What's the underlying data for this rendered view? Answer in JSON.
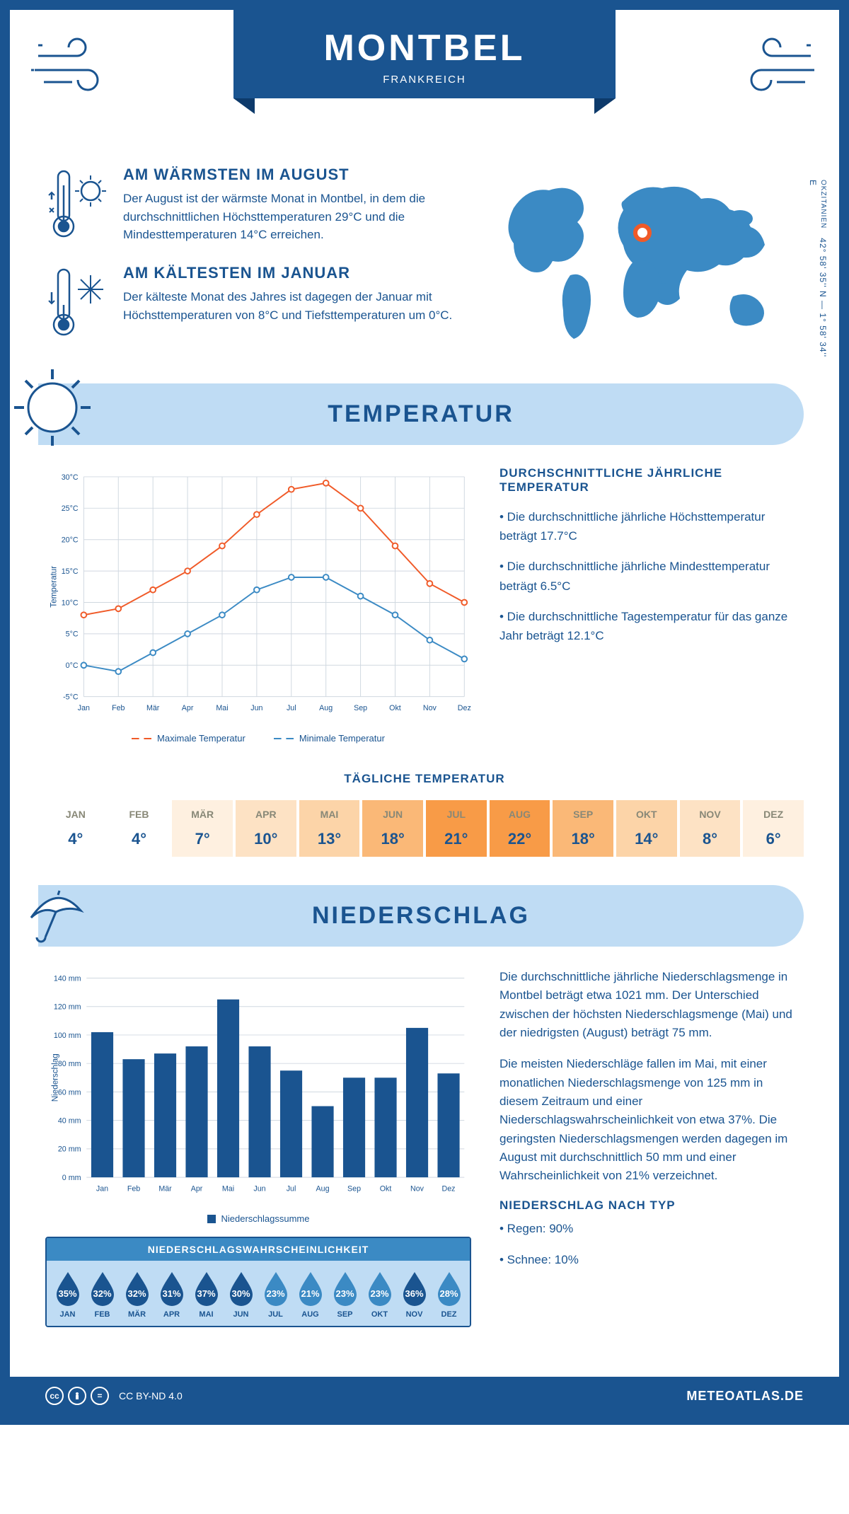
{
  "header": {
    "title": "MONTBEL",
    "subtitle": "FRANKREICH"
  },
  "coords": {
    "lat": "42° 58' 35'' N",
    "sep": "—",
    "lon": "1° 58' 34'' E",
    "region": "OKZITANIEN"
  },
  "intro": {
    "warm": {
      "title": "AM WÄRMSTEN IM AUGUST",
      "text": "Der August ist der wärmste Monat in Montbel, in dem die durchschnittlichen Höchsttemperaturen 29°C und die Mindesttemperaturen 14°C erreichen."
    },
    "cold": {
      "title": "AM KÄLTESTEN IM JANUAR",
      "text": "Der kälteste Monat des Jahres ist dagegen der Januar mit Höchsttemperaturen von 8°C und Tiefsttemperaturen um 0°C."
    }
  },
  "temp_section": {
    "heading": "TEMPERATUR",
    "chart": {
      "type": "line",
      "months": [
        "Jan",
        "Feb",
        "Mär",
        "Apr",
        "Mai",
        "Jun",
        "Jul",
        "Aug",
        "Sep",
        "Okt",
        "Nov",
        "Dez"
      ],
      "max": [
        8,
        9,
        12,
        15,
        19,
        24,
        28,
        29,
        25,
        19,
        13,
        10
      ],
      "min": [
        0,
        -1,
        2,
        5,
        8,
        12,
        14,
        14,
        11,
        8,
        4,
        1
      ],
      "max_color": "#f05a28",
      "min_color": "#3b8ac4",
      "ylim": [
        -5,
        30
      ],
      "ytick_step": 5,
      "ylabel": "Temperatur",
      "grid_color": "#d0d8e0",
      "line_width": 2,
      "marker_size": 4,
      "legend": {
        "max": "Maximale Temperatur",
        "min": "Minimale Temperatur"
      }
    },
    "summary": {
      "title": "DURCHSCHNITTLICHE JÄHRLICHE TEMPERATUR",
      "b1": "• Die durchschnittliche jährliche Höchsttemperatur beträgt 17.7°C",
      "b2": "• Die durchschnittliche jährliche Mindesttemperatur beträgt 6.5°C",
      "b3": "• Die durchschnittliche Tagestemperatur für das ganze Jahr beträgt 12.1°C"
    },
    "daily": {
      "title": "TÄGLICHE TEMPERATUR",
      "months": [
        "JAN",
        "FEB",
        "MÄR",
        "APR",
        "MAI",
        "JUN",
        "JUL",
        "AUG",
        "SEP",
        "OKT",
        "NOV",
        "DEZ"
      ],
      "values": [
        "4°",
        "4°",
        "7°",
        "10°",
        "13°",
        "18°",
        "21°",
        "22°",
        "18°",
        "14°",
        "8°",
        "6°"
      ],
      "colors": [
        "#ffffff",
        "#ffffff",
        "#fef0e0",
        "#fde2c4",
        "#fcd4a8",
        "#fab877",
        "#f89b47",
        "#f89b47",
        "#fab877",
        "#fcd4a8",
        "#fde2c4",
        "#fef0e0"
      ]
    }
  },
  "precip_section": {
    "heading": "NIEDERSCHLAG",
    "chart": {
      "type": "bar",
      "months": [
        "Jan",
        "Feb",
        "Mär",
        "Apr",
        "Mai",
        "Jun",
        "Jul",
        "Aug",
        "Sep",
        "Okt",
        "Nov",
        "Dez"
      ],
      "values": [
        102,
        83,
        87,
        92,
        125,
        92,
        75,
        50,
        70,
        70,
        105,
        73
      ],
      "bar_color": "#1a5490",
      "ylim": [
        0,
        140
      ],
      "ytick_step": 20,
      "ylabel": "Niederschlag",
      "grid_color": "#d0d8e0",
      "legend_label": "Niederschlagssumme"
    },
    "text": {
      "p1": "Die durchschnittliche jährliche Niederschlagsmenge in Montbel beträgt etwa 1021 mm. Der Unterschied zwischen der höchsten Niederschlagsmenge (Mai) und der niedrigsten (August) beträgt 75 mm.",
      "p2": "Die meisten Niederschläge fallen im Mai, mit einer monatlichen Niederschlagsmenge von 125 mm in diesem Zeitraum und einer Niederschlagswahrscheinlichkeit von etwa 37%. Die geringsten Niederschlagsmengen werden dagegen im August mit durchschnittlich 50 mm und einer Wahrscheinlichkeit von 21% verzeichnet.",
      "type_title": "NIEDERSCHLAG NACH TYP",
      "type_b1": "• Regen: 90%",
      "type_b2": "• Schnee: 10%"
    },
    "prob": {
      "title": "NIEDERSCHLAGSWAHRSCHEINLICHKEIT",
      "months": [
        "JAN",
        "FEB",
        "MÄR",
        "APR",
        "MAI",
        "JUN",
        "JUL",
        "AUG",
        "SEP",
        "OKT",
        "NOV",
        "DEZ"
      ],
      "values": [
        "35%",
        "32%",
        "32%",
        "31%",
        "37%",
        "30%",
        "23%",
        "21%",
        "23%",
        "23%",
        "36%",
        "28%"
      ],
      "colors": [
        "#1a5490",
        "#1a5490",
        "#1a5490",
        "#1a5490",
        "#1a5490",
        "#1a5490",
        "#3b8ac4",
        "#3b8ac4",
        "#3b8ac4",
        "#3b8ac4",
        "#1a5490",
        "#3b8ac4"
      ]
    }
  },
  "footer": {
    "license": "CC BY-ND 4.0",
    "site": "METEOATLAS.DE"
  },
  "colors": {
    "primary": "#1a5490",
    "light": "#bfdcf4",
    "mid": "#3b8ac4"
  }
}
